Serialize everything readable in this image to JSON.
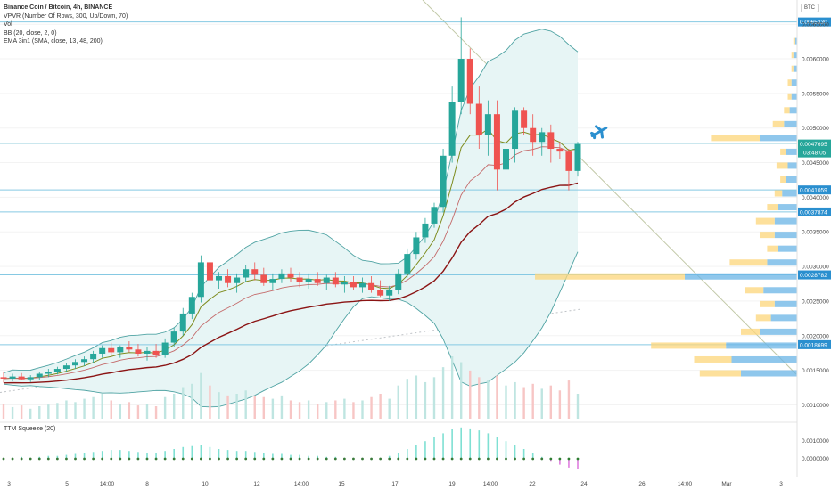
{
  "header": {
    "title": "Binance Coin / Bitcoin, 4h, BINANCE",
    "indicators": [
      "VPVR (Number Of Rows, 300, Up/Down, 70)",
      "Vol",
      "BB (20, close, 2, 0)",
      "EMA 3in1 (SMA, close, 13, 48, 200)"
    ],
    "currency_badge": "BTC"
  },
  "subpanel": {
    "title": "TTM Squeeze (20)"
  },
  "colors": {
    "up": "#26a69a",
    "down": "#ef5350",
    "hline": "#86c9e3",
    "bb_band": "#4fa3a3",
    "bb_fill": "#e7f5f5",
    "ema_fast": "#7e8c1f",
    "ema_mid": "#c46a6a",
    "ema_slow": "#8b1414",
    "trend": "#c2c9a8",
    "vp_up": "#6ab4e6",
    "vp_down": "#fcd67a",
    "badge_blue": "#2a8fcf"
  },
  "chart_data": {
    "type": "candlestick",
    "price_axis": {
      "min": 0.0008,
      "max": 0.00685,
      "ticks": [
        "0.0065000",
        "0.0060000",
        "0.0055000",
        "0.0050000",
        "0.0045000",
        "0.0040000",
        "0.0035000",
        "0.0030000",
        "0.0025000",
        "0.0020000",
        "0.0015000",
        "0.0010000"
      ]
    },
    "highlighted_levels": [
      {
        "value": 0.006533,
        "label": "0.0065330"
      },
      {
        "value": 0.0041059,
        "label": "0.0041059"
      },
      {
        "value": 0.0037874,
        "label": "0.0037874"
      },
      {
        "value": 0.0028782,
        "label": "0.0028782"
      },
      {
        "value": 0.0018699,
        "label": "0.0018699"
      }
    ],
    "last_price": {
      "value": 0.0047695,
      "label": "0.0047695",
      "countdown": "03:48:05"
    },
    "x_axis": {
      "ticks": [
        "3",
        "5",
        "14:00",
        "8",
        "10",
        "12",
        "14:00",
        "15",
        "17",
        "19",
        "14:00",
        "22",
        "24",
        "26",
        "14:00",
        "Mar",
        "3"
      ]
    },
    "candles": {
      "fields": [
        "open",
        "high",
        "low",
        "close"
      ],
      "values": [
        [
          0.0014,
          0.00148,
          0.00132,
          0.00138
        ],
        [
          0.00138,
          0.00145,
          0.00134,
          0.00141
        ],
        [
          0.00141,
          0.00146,
          0.00136,
          0.00137
        ],
        [
          0.00137,
          0.00143,
          0.00133,
          0.0014
        ],
        [
          0.0014,
          0.00148,
          0.00136,
          0.00145
        ],
        [
          0.00145,
          0.00152,
          0.0014,
          0.00148
        ],
        [
          0.00148,
          0.00155,
          0.00144,
          0.00152
        ],
        [
          0.00152,
          0.0016,
          0.00148,
          0.00157
        ],
        [
          0.00157,
          0.00166,
          0.00152,
          0.00162
        ],
        [
          0.00162,
          0.0017,
          0.00156,
          0.00166
        ],
        [
          0.00166,
          0.00178,
          0.0016,
          0.00174
        ],
        [
          0.00174,
          0.00186,
          0.00168,
          0.00182
        ],
        [
          0.00182,
          0.0019,
          0.0017,
          0.00176
        ],
        [
          0.00176,
          0.00186,
          0.00168,
          0.00184
        ],
        [
          0.00184,
          0.00192,
          0.00176,
          0.0018
        ],
        [
          0.0018,
          0.00188,
          0.0017,
          0.00174
        ],
        [
          0.00174,
          0.00184,
          0.00164,
          0.00178
        ],
        [
          0.00178,
          0.00188,
          0.00168,
          0.00172
        ],
        [
          0.00172,
          0.00196,
          0.00168,
          0.0019
        ],
        [
          0.0019,
          0.00212,
          0.00184,
          0.00206
        ],
        [
          0.00206,
          0.0024,
          0.002,
          0.00232
        ],
        [
          0.00232,
          0.00262,
          0.00224,
          0.00256
        ],
        [
          0.00256,
          0.00316,
          0.00248,
          0.00306
        ],
        [
          0.00306,
          0.00322,
          0.0027,
          0.0028
        ],
        [
          0.0028,
          0.00292,
          0.00268,
          0.00286
        ],
        [
          0.00286,
          0.00296,
          0.0027,
          0.00276
        ],
        [
          0.00276,
          0.0029,
          0.00262,
          0.00284
        ],
        [
          0.00284,
          0.00302,
          0.00278,
          0.00296
        ],
        [
          0.00296,
          0.00306,
          0.0028,
          0.00288
        ],
        [
          0.00288,
          0.00298,
          0.00272,
          0.00276
        ],
        [
          0.00276,
          0.0029,
          0.00266,
          0.00282
        ],
        [
          0.00282,
          0.00296,
          0.00276,
          0.0029
        ],
        [
          0.0029,
          0.00298,
          0.00278,
          0.00284
        ],
        [
          0.00284,
          0.00292,
          0.0027,
          0.00278
        ],
        [
          0.00278,
          0.0029,
          0.00268,
          0.00282
        ],
        [
          0.00282,
          0.00292,
          0.00272,
          0.00276
        ],
        [
          0.00276,
          0.00288,
          0.00266,
          0.00284
        ],
        [
          0.00284,
          0.00292,
          0.0027,
          0.00274
        ],
        [
          0.00274,
          0.00286,
          0.00262,
          0.00278
        ],
        [
          0.00278,
          0.00286,
          0.00266,
          0.0027
        ],
        [
          0.0027,
          0.00284,
          0.00262,
          0.00276
        ],
        [
          0.00276,
          0.00286,
          0.00262,
          0.00266
        ],
        [
          0.00266,
          0.0028,
          0.00256,
          0.00258
        ],
        [
          0.00258,
          0.00272,
          0.0025,
          0.00266
        ],
        [
          0.00266,
          0.00296,
          0.0026,
          0.0029
        ],
        [
          0.0029,
          0.00326,
          0.00284,
          0.00318
        ],
        [
          0.00318,
          0.0035,
          0.0031,
          0.00342
        ],
        [
          0.00342,
          0.0037,
          0.00334,
          0.00362
        ],
        [
          0.00362,
          0.00392,
          0.00356,
          0.00386
        ],
        [
          0.00386,
          0.0047,
          0.00378,
          0.0046
        ],
        [
          0.0046,
          0.0056,
          0.0045,
          0.00538
        ],
        [
          0.00538,
          0.0066,
          0.0052,
          0.006
        ],
        [
          0.006,
          0.00615,
          0.0052,
          0.00535
        ],
        [
          0.00535,
          0.0056,
          0.0047,
          0.0049
        ],
        [
          0.0049,
          0.0054,
          0.0046,
          0.0052
        ],
        [
          0.0052,
          0.0054,
          0.0041,
          0.0044
        ],
        [
          0.0044,
          0.0049,
          0.0041,
          0.0047
        ],
        [
          0.0047,
          0.0053,
          0.0045,
          0.00525
        ],
        [
          0.00525,
          0.0053,
          0.0049,
          0.005
        ],
        [
          0.005,
          0.0052,
          0.0046,
          0.0048
        ],
        [
          0.0048,
          0.005,
          0.0046,
          0.00494
        ],
        [
          0.00494,
          0.00505,
          0.0045,
          0.0047
        ],
        [
          0.0047,
          0.0048,
          0.00455,
          0.00466
        ],
        [
          0.00466,
          0.0047,
          0.0041,
          0.00438
        ],
        [
          0.00438,
          0.0048,
          0.0043,
          0.00477
        ]
      ]
    },
    "volume": [
      18,
      14,
      16,
      12,
      15,
      17,
      19,
      22,
      20,
      24,
      26,
      30,
      22,
      18,
      20,
      16,
      18,
      15,
      26,
      30,
      38,
      42,
      55,
      40,
      32,
      28,
      30,
      34,
      28,
      26,
      24,
      28,
      22,
      20,
      22,
      18,
      20,
      22,
      24,
      20,
      22,
      26,
      30,
      24,
      40,
      48,
      52,
      44,
      50,
      62,
      75,
      68,
      58,
      50,
      46,
      52,
      40,
      44,
      38,
      42,
      36,
      40,
      34,
      46,
      30
    ],
    "ttm_squeeze_histogram": [
      0,
      1,
      2,
      1,
      2,
      3,
      3,
      4,
      5,
      6,
      7,
      8,
      9,
      9,
      8,
      7,
      6,
      6,
      8,
      10,
      12,
      13,
      14,
      12,
      10,
      9,
      8,
      8,
      7,
      6,
      5,
      5,
      4,
      4,
      3,
      3,
      2,
      2,
      1,
      1,
      0,
      0,
      1,
      3,
      6,
      10,
      14,
      18,
      22,
      26,
      30,
      32,
      31,
      29,
      26,
      22,
      18,
      14,
      10,
      6,
      2,
      -3,
      -6,
      -9,
      -10
    ],
    "volume_profile_levels": [
      0.00145,
      0.00165,
      0.00185,
      0.00205,
      0.00225,
      0.00245,
      0.00265,
      0.00285,
      0.00305,
      0.00325,
      0.00345,
      0.00365,
      0.00385,
      0.00405,
      0.00425,
      0.00445,
      0.00465,
      0.00485,
      0.00505,
      0.00525,
      0.00545,
      0.00565,
      0.00585,
      0.00605,
      0.00625
    ],
    "volume_profile_up": [
      30,
      35,
      38,
      20,
      14,
      12,
      18,
      60,
      16,
      10,
      12,
      12,
      10,
      8,
      6,
      5,
      6,
      20,
      7,
      4,
      3,
      3,
      2,
      2,
      1
    ],
    "volume_profile_down": [
      22,
      20,
      40,
      10,
      8,
      8,
      10,
      80,
      20,
      6,
      8,
      10,
      6,
      4,
      3,
      6,
      3,
      26,
      6,
      3,
      2,
      2,
      1,
      1,
      1
    ]
  }
}
